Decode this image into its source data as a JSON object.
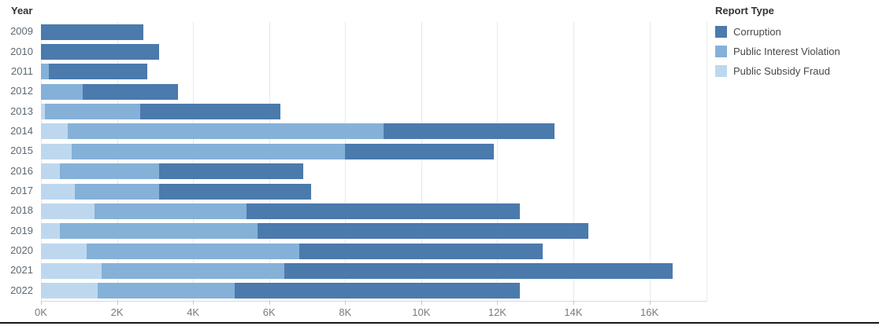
{
  "header": {
    "y_axis_title": "Year"
  },
  "legend": {
    "title": "Report Type",
    "items": [
      {
        "label": "Corruption",
        "color": "#4b7aad"
      },
      {
        "label": "Public Interest Violation",
        "color": "#85b1d8"
      },
      {
        "label": "Public Subsidy Fraud",
        "color": "#bdd8ee"
      }
    ]
  },
  "chart_data": {
    "type": "bar",
    "orientation": "horizontal",
    "stacked": true,
    "title": "",
    "ylabel": "Year",
    "xlabel": "",
    "units": "thousands of reports (axis shown in K)",
    "categories": [
      "2009",
      "2010",
      "2011",
      "2012",
      "2013",
      "2014",
      "2015",
      "2016",
      "2017",
      "2018",
      "2019",
      "2020",
      "2021",
      "2022"
    ],
    "stack_order_note": "segments stack left-to-right: Public Subsidy Fraud, Public Interest Violation, Corruption",
    "series": [
      {
        "name": "Public Subsidy Fraud",
        "color": "#bdd8ee",
        "values": [
          0,
          0,
          0,
          0,
          0.1,
          0.7,
          0.8,
          0.5,
          0.9,
          1.4,
          0.5,
          1.2,
          1.6,
          1.5
        ]
      },
      {
        "name": "Public Interest Violation",
        "color": "#85b1d8",
        "values": [
          0,
          0,
          0.2,
          1.1,
          2.5,
          8.3,
          7.2,
          2.6,
          2.2,
          4.0,
          5.2,
          5.6,
          4.8,
          3.6
        ]
      },
      {
        "name": "Corruption",
        "color": "#4b7aad",
        "values": [
          2.7,
          3.1,
          2.6,
          2.5,
          3.7,
          4.5,
          3.9,
          3.8,
          4.0,
          7.2,
          8.7,
          6.4,
          10.2,
          7.5
        ]
      }
    ],
    "totals": [
      2.7,
      3.1,
      2.8,
      3.6,
      6.3,
      13.5,
      11.9,
      6.9,
      7.1,
      12.6,
      14.4,
      13.2,
      16.6,
      12.6
    ],
    "x_ticks": [
      {
        "value": 0,
        "label": "0K"
      },
      {
        "value": 2,
        "label": "2K"
      },
      {
        "value": 4,
        "label": "4K"
      },
      {
        "value": 6,
        "label": "6K"
      },
      {
        "value": 8,
        "label": "8K"
      },
      {
        "value": 10,
        "label": "10K"
      },
      {
        "value": 12,
        "label": "12K"
      },
      {
        "value": 14,
        "label": "14K"
      },
      {
        "value": 16,
        "label": "16K"
      }
    ],
    "xlim": [
      0,
      17.5
    ],
    "grid": true,
    "legend_position": "right"
  }
}
